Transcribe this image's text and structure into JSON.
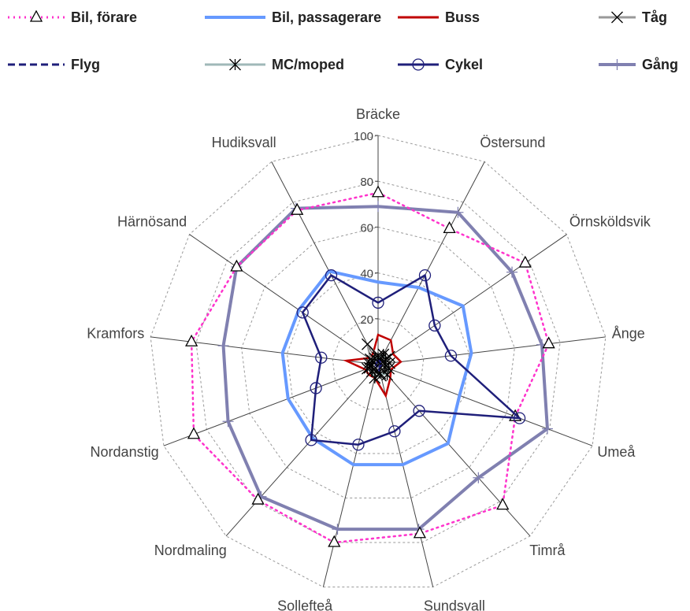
{
  "chart_data": {
    "type": "radar",
    "categories": [
      "Bräcke",
      "Östersund",
      "Örnsköldsvik",
      "Ånge",
      "Umeå",
      "Timrå",
      "Sundsvall",
      "Sollefteå",
      "Nordmaling",
      "Nordanstig",
      "Kramfors",
      "Härnösand",
      "Hudiksvall"
    ],
    "ylim": [
      0,
      100
    ],
    "yticks": [
      20,
      40,
      60,
      80,
      100
    ],
    "grid": true,
    "series": [
      {
        "name": "Bil, förare",
        "color": "#ff33cc",
        "dash": "dotted",
        "marker": "triangle",
        "values": [
          75,
          67,
          78,
          75,
          64,
          82,
          76,
          80,
          79,
          86,
          82,
          75,
          76
        ]
      },
      {
        "name": "Bil, passagerare",
        "color": "#6699ff",
        "dash": "solid",
        "marker": "none",
        "values": [
          36,
          38,
          45,
          41,
          38,
          46,
          45,
          45,
          43,
          42,
          42,
          42,
          46
        ]
      },
      {
        "name": "Buss",
        "color": "#c00000",
        "dash": "solid",
        "marker": "none",
        "values": [
          13,
          12,
          8,
          10,
          6,
          8,
          14,
          6,
          6,
          6,
          14,
          5,
          5
        ]
      },
      {
        "name": "Tåg",
        "color": "#999999",
        "dash": "solid",
        "marker": "x",
        "values": [
          4,
          3,
          6,
          5,
          3,
          4,
          5,
          3,
          3,
          4,
          3,
          4,
          10
        ]
      },
      {
        "name": "Flyg",
        "color": "#1f1f7a",
        "dash": "dashed",
        "marker": "none",
        "values": [
          2,
          2,
          1,
          1,
          2,
          1,
          3,
          1,
          1,
          1,
          1,
          1,
          1
        ]
      },
      {
        "name": "MC/moped",
        "color": "#a0b8b8",
        "dash": "solid",
        "marker": "asterisk",
        "values": [
          3,
          5,
          4,
          3,
          5,
          6,
          4,
          6,
          4,
          5,
          4,
          3,
          3
        ]
      },
      {
        "name": "Cykel",
        "color": "#1f1f7a",
        "dash": "solid",
        "marker": "circle",
        "values": [
          27,
          44,
          30,
          32,
          66,
          27,
          30,
          36,
          44,
          29,
          25,
          40,
          44
        ]
      },
      {
        "name": "Gång",
        "color": "#8080b0",
        "dash": "solid",
        "marker": "plus",
        "values": [
          69,
          75,
          71,
          72,
          79,
          66,
          74,
          74,
          77,
          70,
          68,
          75,
          77
        ]
      }
    ]
  }
}
